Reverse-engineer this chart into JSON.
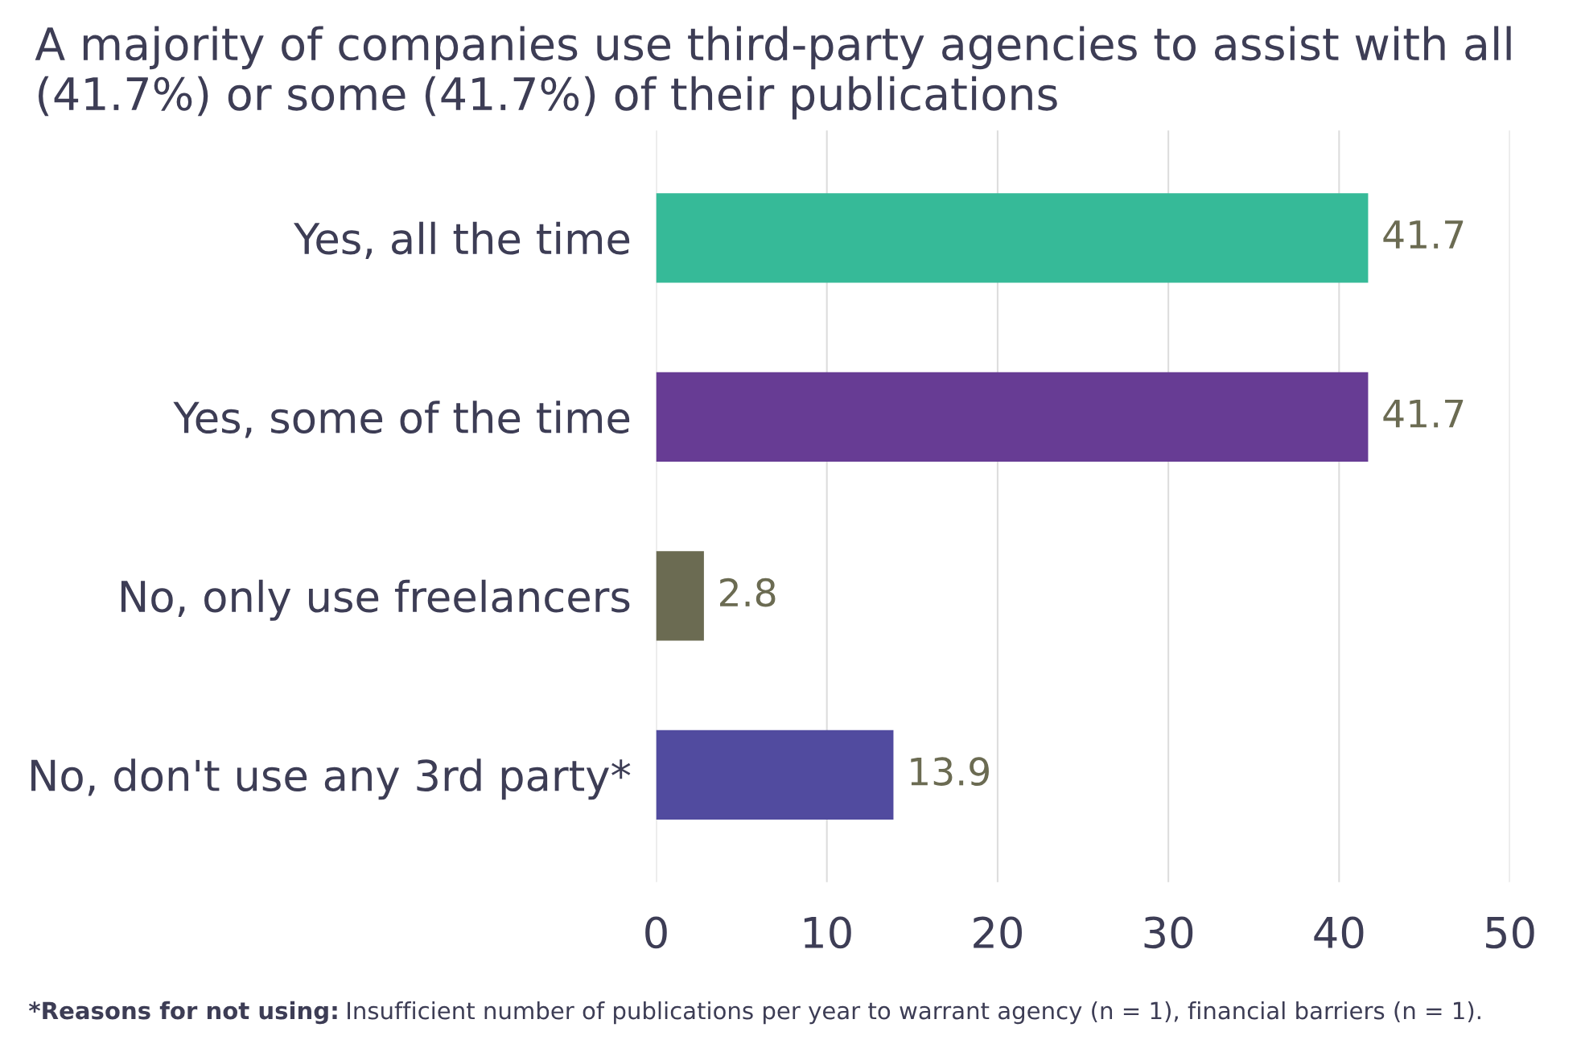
{
  "chart_data": {
    "type": "bar",
    "orientation": "horizontal",
    "title": "A majority of companies use third-party agencies to assist with all (41.7%) or some (41.7%) of their publications",
    "categories": [
      "Yes, all the time",
      "Yes, some of the time",
      "No, only use freelancers",
      "No, don't use any 3rd party*"
    ],
    "values": [
      41.7,
      41.7,
      2.8,
      13.9
    ],
    "colors": [
      "#36ba98",
      "#673c94",
      "#6b6b52",
      "#514b9f"
    ],
    "xlim": [
      0,
      50
    ],
    "xticks": [
      0,
      10,
      20,
      30,
      40,
      50
    ],
    "grid": "x",
    "data_labels": true,
    "annotations": [
      "*Reasons for not using:",
      "Insufficient number of publications per year to warrant agency (n = 1), financial barriers (n = 1)."
    ]
  }
}
